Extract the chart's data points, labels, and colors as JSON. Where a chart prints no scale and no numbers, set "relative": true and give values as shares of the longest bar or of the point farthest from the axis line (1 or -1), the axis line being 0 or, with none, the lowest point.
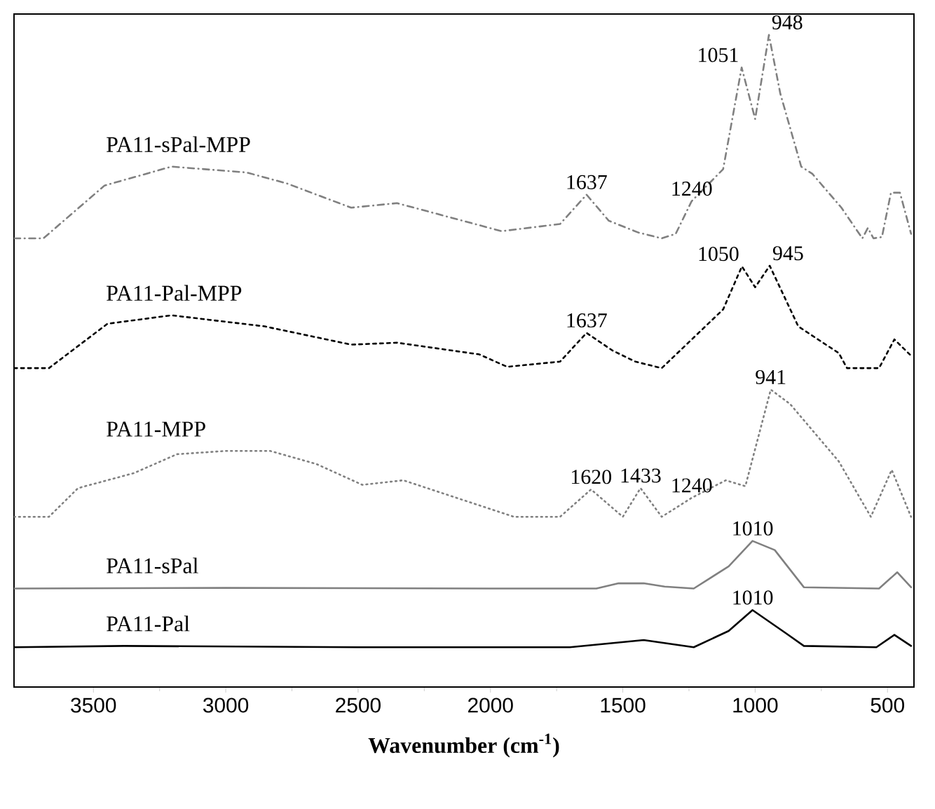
{
  "chart_data": {
    "type": "line",
    "relative": true,
    "xlabel": "Wavenumber (cm$^{-1}$)",
    "xlim": [
      3800,
      400
    ],
    "xticks": [
      3500,
      3000,
      2500,
      2000,
      1500,
      1000,
      500
    ],
    "tick_labels": "x",
    "grid": false,
    "legend": false,
    "marker": "none",
    "series": [
      {
        "name": "PA11-sPal-MPP",
        "color": "#808080",
        "line_style": "dashdot",
        "x": [
          3800,
          3689,
          3458,
          3205,
          2921,
          2768,
          2526,
          2353,
          1958,
          1737,
          1637,
          1553,
          1442,
          1353,
          1300,
          1240,
          1121,
          1051,
          1000,
          948,
          905,
          826,
          784,
          674,
          595,
          574,
          553,
          521,
          487,
          453,
          411
        ],
        "values": [
          0.688,
          0.688,
          0.769,
          0.798,
          0.789,
          0.772,
          0.735,
          0.742,
          0.699,
          0.71,
          0.755,
          0.715,
          0.697,
          0.688,
          0.695,
          0.745,
          0.794,
          0.95,
          0.871,
          1.0,
          0.91,
          0.798,
          0.787,
          0.735,
          0.688,
          0.704,
          0.688,
          0.69,
          0.758,
          0.758,
          0.695
        ]
      },
      {
        "name": "PA11-Pal-MPP",
        "color": "#000000",
        "line_style": "dashed",
        "x": [
          3800,
          3668,
          3447,
          3205,
          2853,
          2526,
          2353,
          2042,
          1937,
          1737,
          1637,
          1539,
          1453,
          1353,
          1121,
          1050,
          1000,
          945,
          837,
          684,
          653,
          532,
          474,
          411
        ],
        "values": [
          0.489,
          0.489,
          0.557,
          0.57,
          0.553,
          0.525,
          0.528,
          0.51,
          0.491,
          0.499,
          0.543,
          0.516,
          0.499,
          0.489,
          0.579,
          0.645,
          0.613,
          0.646,
          0.553,
          0.512,
          0.489,
          0.489,
          0.533,
          0.508
        ]
      },
      {
        "name": "PA11-MPP",
        "color": "#808080",
        "line_style": "dotted",
        "x": [
          3800,
          3668,
          3558,
          3347,
          3184,
          3000,
          2832,
          2658,
          2484,
          2329,
          1911,
          1737,
          1620,
          1500,
          1433,
          1353,
          1240,
          1111,
          1037,
          941,
          868,
          684,
          563,
          484,
          411
        ],
        "values": [
          0.261,
          0.261,
          0.305,
          0.328,
          0.357,
          0.362,
          0.362,
          0.342,
          0.31,
          0.317,
          0.261,
          0.261,
          0.303,
          0.261,
          0.305,
          0.261,
          0.29,
          0.317,
          0.308,
          0.456,
          0.434,
          0.346,
          0.261,
          0.333,
          0.261
        ]
      },
      {
        "name": "PA11-sPal",
        "color": "#808080",
        "line_style": "solid",
        "x": [
          3800,
          3000,
          2000,
          1600,
          1516,
          1421,
          1342,
          1232,
          1100,
          1010,
          926,
          816,
          532,
          463,
          411
        ],
        "values": [
          0.151,
          0.152,
          0.151,
          0.151,
          0.159,
          0.159,
          0.154,
          0.151,
          0.185,
          0.224,
          0.21,
          0.153,
          0.151,
          0.176,
          0.153
        ]
      },
      {
        "name": "PA11-Pal",
        "color": "#000000",
        "line_style": "solid",
        "x": [
          3800,
          3384,
          2500,
          1700,
          1421,
          1232,
          1100,
          1010,
          882,
          816,
          542,
          474,
          411
        ],
        "values": [
          0.061,
          0.063,
          0.061,
          0.061,
          0.072,
          0.061,
          0.086,
          0.118,
          0.082,
          0.063,
          0.061,
          0.08,
          0.063
        ]
      }
    ],
    "annotations": [
      {
        "text": "1051",
        "x": 1051,
        "y": 0.95
      },
      {
        "text": "948",
        "x": 948,
        "y": 1.0
      },
      {
        "text": "1637",
        "x": 1637,
        "y": 0.755
      },
      {
        "text": "1240",
        "x": 1240,
        "y": 0.745
      },
      {
        "text": "1050",
        "x": 1050,
        "y": 0.645
      },
      {
        "text": "945",
        "x": 945,
        "y": 0.646
      },
      {
        "text": "1637",
        "x": 1637,
        "y": 0.543
      },
      {
        "text": "941",
        "x": 941,
        "y": 0.456
      },
      {
        "text": "1620",
        "x": 1620,
        "y": 0.303
      },
      {
        "text": "1433",
        "x": 1433,
        "y": 0.305
      },
      {
        "text": "1240",
        "x": 1240,
        "y": 0.29
      },
      {
        "text": "1010",
        "x": 1010,
        "y": 0.224
      },
      {
        "text": "1010",
        "x": 1010,
        "y": 0.118
      }
    ]
  }
}
